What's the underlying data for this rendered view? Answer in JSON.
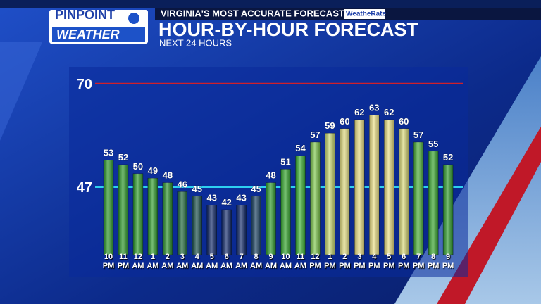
{
  "branding": {
    "logo_top": "PINPOINT",
    "logo_bottom": "WEATHER",
    "tagline": "VIRGINIA'S MOST ACCURATE FORECAST",
    "badge": "WeatheRate"
  },
  "chart_data": {
    "type": "bar",
    "title": "HOUR-BY-HOUR FORECAST",
    "subtitle": "NEXT 24 HOURS",
    "categories": [
      "10 PM",
      "11 PM",
      "12 AM",
      "1 AM",
      "2 AM",
      "3 AM",
      "4 AM",
      "5 AM",
      "6 AM",
      "7 AM",
      "8 AM",
      "9 AM",
      "10 AM",
      "11 AM",
      "12 PM",
      "1 PM",
      "2 PM",
      "3 PM",
      "4 PM",
      "5 PM",
      "6 PM",
      "7 PM",
      "8 PM",
      "9 PM"
    ],
    "values": [
      53,
      52,
      50,
      49,
      48,
      46,
      45,
      43,
      42,
      43,
      45,
      48,
      51,
      54,
      57,
      59,
      60,
      62,
      63,
      62,
      60,
      57,
      55,
      52
    ],
    "colors": [
      "#2e9a2a",
      "#2e9a2a",
      "#2e9a2a",
      "#2e9a2a",
      "#2a8f2a",
      "#1f6a3a",
      "#1a4f4a",
      "#122a6a",
      "#122a6a",
      "#122a6a",
      "#1a4060",
      "#2e9a2a",
      "#34a52c",
      "#3aae30",
      "#7cc44a",
      "#c8d870",
      "#e0dc80",
      "#e8dc80",
      "#eadf85",
      "#e8dc80",
      "#d8d878",
      "#4cb038",
      "#3aa830",
      "#2e9a2a"
    ],
    "ylim": [
      32,
      72
    ],
    "reference_lines": [
      {
        "value": 70,
        "color": "#d0202a"
      },
      {
        "value": 47,
        "color": "#2ed0f0"
      }
    ]
  }
}
